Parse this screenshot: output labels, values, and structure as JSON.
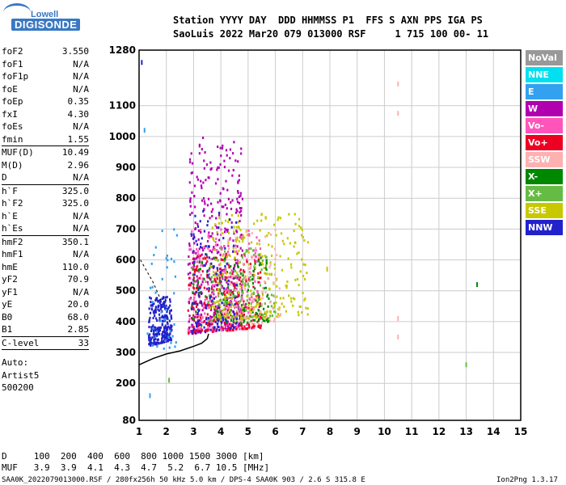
{
  "logo": {
    "top": "Lowell",
    "bottom": "DIGISONDE"
  },
  "header": {
    "line1": "Station YYYY DAY  DDD HHMMSS P1  FFS S AXN PPS IGA PS",
    "line2": "SaoLuis 2022 Mar20 079 013000 RSF     1 715 100 00- 11"
  },
  "params": [
    {
      "name": "foF2",
      "value": "3.550"
    },
    {
      "name": "foF1",
      "value": "N/A"
    },
    {
      "name": "foF1p",
      "value": "N/A"
    },
    {
      "name": "foE",
      "value": "N/A"
    },
    {
      "name": "foEp",
      "value": "0.35"
    },
    {
      "name": "fxI",
      "value": "4.30"
    },
    {
      "name": "foEs",
      "value": "N/A"
    },
    {
      "name": "fmin",
      "value": "1.55"
    },
    {
      "name": "MUF(D)",
      "value": "10.49"
    },
    {
      "name": "M(D)",
      "value": "2.96"
    },
    {
      "name": "D",
      "value": "N/A"
    },
    {
      "name": "h`F",
      "value": "325.0"
    },
    {
      "name": "h`F2",
      "value": "325.0"
    },
    {
      "name": "h`E",
      "value": "N/A"
    },
    {
      "name": "h`Es",
      "value": "N/A"
    },
    {
      "name": "hmF2",
      "value": "350.1"
    },
    {
      "name": "hmF1",
      "value": "N/A"
    },
    {
      "name": "hmE",
      "value": "110.0"
    },
    {
      "name": "yF2",
      "value": "70.9"
    },
    {
      "name": "yF1",
      "value": "N/A"
    },
    {
      "name": "yE",
      "value": "20.0"
    },
    {
      "name": "B0",
      "value": "68.0"
    },
    {
      "name": "B1",
      "value": "2.85"
    },
    {
      "name": "C-level",
      "value": "33"
    }
  ],
  "auto": [
    "Auto:",
    "Artist5",
    "500200"
  ],
  "legend": [
    {
      "label": "NoVal",
      "color": "#999999"
    },
    {
      "label": "NNE",
      "color": "#00e0f0"
    },
    {
      "label": "E",
      "color": "#33a0f0"
    },
    {
      "label": "W",
      "color": "#b000b0"
    },
    {
      "label": "Vo-",
      "color": "#ff55bb"
    },
    {
      "label": "Vo+",
      "color": "#ee0022"
    },
    {
      "label": "SSW",
      "color": "#ffb0b0"
    },
    {
      "label": "X-",
      "color": "#008800"
    },
    {
      "label": "X+",
      "color": "#66bb44"
    },
    {
      "label": "SSE",
      "color": "#c8c800"
    },
    {
      "label": "NNW",
      "color": "#2222cc"
    }
  ],
  "bottom": {
    "line1": "D     100  200  400  600  800 1000 1500 3000 [km]",
    "line2": "MUF   3.9  3.9  4.1  4.3  4.7  5.2  6.7 10.5 [MHz]"
  },
  "footer": {
    "left": "SAA0K_2022079013000.RSF / 280fx256h 50 kHz 5.0 km / DPS-4 SAA0K 903 / 2.6 S 315.8 E",
    "right": "Ion2Png 1.3.17"
  },
  "chart_data": {
    "type": "scatter",
    "title": "",
    "xlabel": "",
    "ylabel": "",
    "xlim": [
      1,
      15
    ],
    "ylim": [
      80,
      1280
    ],
    "x_ticks": [
      1,
      2,
      3,
      4,
      5,
      6,
      7,
      8,
      9,
      10,
      11,
      12,
      13,
      14,
      15
    ],
    "y_ticks": [
      80,
      200,
      300,
      400,
      500,
      600,
      700,
      800,
      900,
      1000,
      1100,
      1280
    ],
    "grid": true,
    "trace_profile": {
      "x": [
        1.0,
        1.5,
        2.0,
        2.5,
        3.0,
        3.3,
        3.5,
        3.55
      ],
      "y": [
        260,
        280,
        295,
        305,
        320,
        330,
        345,
        360
      ]
    },
    "clusters": [
      {
        "series": "NNW",
        "x": [
          1.35,
          2.2
        ],
        "y": [
          320,
          480
        ],
        "n": 260
      },
      {
        "series": "E",
        "x": [
          1.3,
          2.4
        ],
        "y": [
          300,
          700
        ],
        "n": 40
      },
      {
        "series": "W",
        "x": [
          2.8,
          4.8
        ],
        "y": [
          360,
          1000
        ],
        "n": 420
      },
      {
        "series": "Vo-",
        "x": [
          2.8,
          5.5
        ],
        "y": [
          360,
          700
        ],
        "n": 280
      },
      {
        "series": "Vo+",
        "x": [
          2.8,
          5.5
        ],
        "y": [
          360,
          620
        ],
        "n": 220
      },
      {
        "series": "X-",
        "x": [
          2.9,
          5.8
        ],
        "y": [
          380,
          620
        ],
        "n": 160
      },
      {
        "series": "X+",
        "x": [
          3.5,
          6.0
        ],
        "y": [
          400,
          640
        ],
        "n": 120
      },
      {
        "series": "SSE",
        "x": [
          3.6,
          7.2
        ],
        "y": [
          400,
          750
        ],
        "n": 260
      },
      {
        "series": "SSW",
        "x": [
          4.0,
          6.2
        ],
        "y": [
          380,
          700
        ],
        "n": 80
      },
      {
        "series": "NNW",
        "x": [
          2.9,
          4.6
        ],
        "y": [
          360,
          760
        ],
        "n": 120
      }
    ],
    "isolated_points": [
      {
        "series": "SSW",
        "x": 10.5,
        "y": 1170
      },
      {
        "series": "SSW",
        "x": 10.5,
        "y": 1075
      },
      {
        "series": "SSW",
        "x": 10.5,
        "y": 410
      },
      {
        "series": "SSW",
        "x": 10.5,
        "y": 350
      },
      {
        "series": "X+",
        "x": 13.0,
        "y": 260
      },
      {
        "series": "X-",
        "x": 13.4,
        "y": 520
      },
      {
        "series": "NNW",
        "x": 1.1,
        "y": 1240
      },
      {
        "series": "E",
        "x": 1.2,
        "y": 1020
      },
      {
        "series": "SSE",
        "x": 7.9,
        "y": 570
      },
      {
        "series": "X+",
        "x": 2.1,
        "y": 210
      },
      {
        "series": "E",
        "x": 1.4,
        "y": 160
      }
    ]
  }
}
